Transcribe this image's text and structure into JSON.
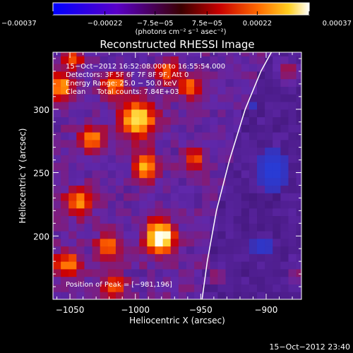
{
  "colorbar": {
    "ticks": [
      "−0.00037",
      "−0.00022",
      "−7.5e−05",
      "7.5e−05",
      "0.00022",
      "0.00037"
    ],
    "values": [
      -0.00037,
      -0.00022,
      -7.5e-05,
      7.5e-05,
      0.00022,
      0.00037
    ],
    "range": [
      -0.00037,
      0.00037
    ],
    "unit_label": "(photons cm⁻² s⁻¹ asec⁻²)"
  },
  "title": "Reconstructed RHESSI Image",
  "info": [
    "15−Oct−2012 16:52:08.000 to 16:55:54.000",
    "Detectors: 3F 5F 6F 7F 8F 9F, Att 0",
    "Energy Range: 25.0 − 50.0 keV",
    "Clean     Total counts: 7.84E+03"
  ],
  "peak_text": "Position of Peak = [−981,196]",
  "timestamp": "15−Oct−2012 23:40",
  "colors": {
    "background": "#000000",
    "axes": "#ffffff",
    "limb": "#ffffff",
    "image_base": "#4a2a96",
    "negative": "#1a3fd0"
  },
  "chart_data": {
    "type": "heatmap",
    "title": "Reconstructed RHESSI Image",
    "xlabel": "Heliocentric X (arcsec)",
    "ylabel": "Heliocentric Y (arcsec)",
    "xlim": [
      -1063,
      -873
    ],
    "ylim": [
      150,
      345
    ],
    "x_ticks": [
      -1050,
      -1000,
      -950,
      -900
    ],
    "x_tick_labels": [
      "−1050",
      "−1000",
      "−950",
      "−900"
    ],
    "y_ticks": [
      200,
      250,
      300
    ],
    "y_tick_labels": [
      "200",
      "250",
      "300"
    ],
    "cell_size": 6,
    "peak": {
      "x": -981,
      "y": 196
    },
    "limb": [
      [
        -949,
        150
      ],
      [
        -945,
        180
      ],
      [
        -938,
        220
      ],
      [
        -928,
        260
      ],
      [
        -916,
        300
      ],
      [
        -904,
        330
      ],
      [
        -896,
        345
      ]
    ],
    "sources": [
      {
        "x": -981,
        "y": 199,
        "sx": 7,
        "sy": 8,
        "amp": 1.0
      },
      {
        "x": -998,
        "y": 292,
        "sx": 8,
        "sy": 9,
        "amp": 0.78
      },
      {
        "x": -992,
        "y": 255,
        "sx": 6,
        "sy": 7,
        "amp": 0.6
      },
      {
        "x": -1033,
        "y": 277,
        "sx": 6,
        "sy": 6,
        "amp": 0.5
      },
      {
        "x": -1043,
        "y": 227,
        "sx": 7,
        "sy": 7,
        "amp": 0.55
      },
      {
        "x": -1057,
        "y": 318,
        "sx": 6,
        "sy": 7,
        "amp": 0.55
      },
      {
        "x": -1016,
        "y": 319,
        "sx": 6,
        "sy": 6,
        "amp": 0.5
      },
      {
        "x": -958,
        "y": 318,
        "sx": 6,
        "sy": 6,
        "amp": 0.4
      },
      {
        "x": -955,
        "y": 262,
        "sx": 5,
        "sy": 6,
        "amp": 0.38
      },
      {
        "x": -1021,
        "y": 192,
        "sx": 6,
        "sy": 7,
        "amp": 0.42
      },
      {
        "x": -1052,
        "y": 178,
        "sx": 7,
        "sy": 7,
        "amp": 0.45
      },
      {
        "x": -1017,
        "y": 160,
        "sx": 6,
        "sy": 6,
        "amp": 0.4
      },
      {
        "x": -975,
        "y": 330,
        "sx": 6,
        "sy": 6,
        "amp": 0.4
      },
      {
        "x": -937,
        "y": 168,
        "sx": 5,
        "sy": 5,
        "amp": 0.32
      },
      {
        "x": -882,
        "y": 330,
        "sx": 6,
        "sy": 6,
        "amp": 0.42
      },
      {
        "x": -877,
        "y": 170,
        "sx": 5,
        "sy": 6,
        "amp": 0.35
      },
      {
        "x": -1048,
        "y": 340,
        "sx": 5,
        "sy": 5,
        "amp": 0.4
      }
    ],
    "negative_regions": [
      {
        "x": -895,
        "y": 252,
        "sx": 9,
        "sy": 14,
        "amp": 0.7
      },
      {
        "x": -902,
        "y": 192,
        "sx": 7,
        "sy": 7,
        "amp": 0.55
      },
      {
        "x": -910,
        "y": 302,
        "sx": 6,
        "sy": 6,
        "amp": 0.35
      }
    ]
  }
}
